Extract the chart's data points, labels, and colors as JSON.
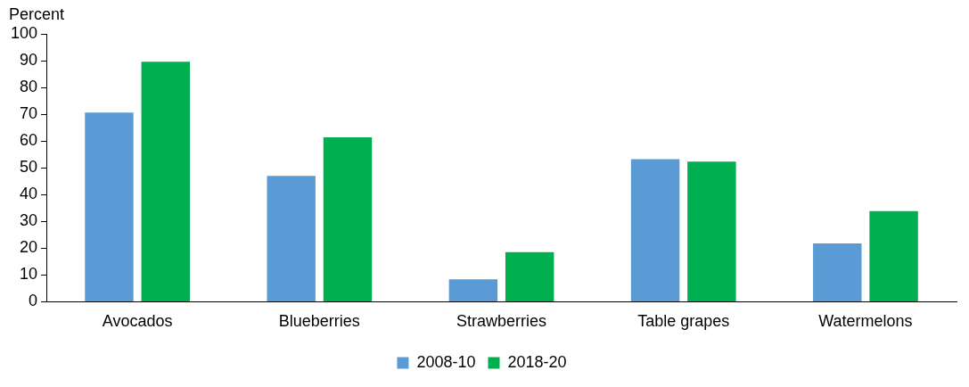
{
  "chart_data": {
    "type": "bar",
    "ylabel": "Percent",
    "categories": [
      "Avocados",
      "Blueberries",
      "Strawberries",
      "Table grapes",
      "Watermelons"
    ],
    "series": [
      {
        "name": "2008-10",
        "color": "#5b9bd5",
        "values": [
          70.6,
          47,
          8.4,
          53.2,
          21.8
        ]
      },
      {
        "name": "2018-20",
        "color": "#00b050",
        "values": [
          89.6,
          61.4,
          18.5,
          52.3,
          33.8
        ]
      }
    ],
    "ylim": [
      0,
      100
    ],
    "yticks": [
      0,
      10,
      20,
      30,
      40,
      50,
      60,
      70,
      80,
      90,
      100
    ],
    "grid": false,
    "legend": "bottom"
  }
}
